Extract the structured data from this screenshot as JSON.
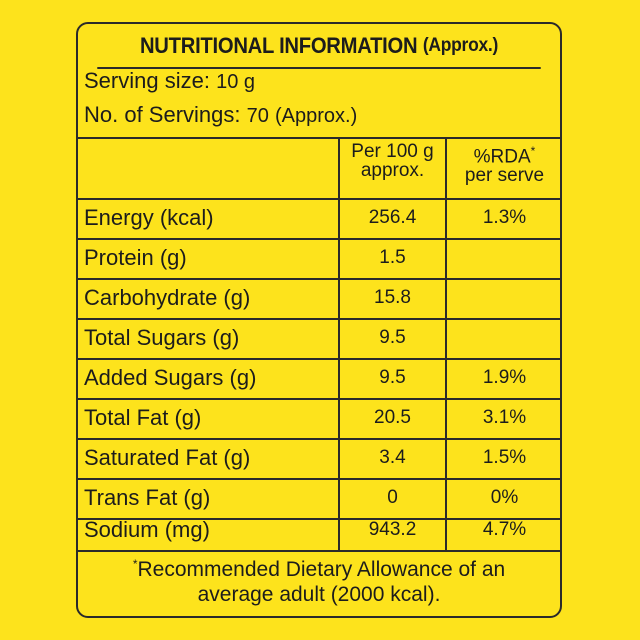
{
  "title": {
    "main": "NUTRITIONAL INFORMATION",
    "suffix": "(Approx.)"
  },
  "serving": {
    "size_label": "Serving size:",
    "size_value": "10 g",
    "count_label": "No. of Servings:",
    "count_value": "70",
    "count_suffix": "(Approx.)"
  },
  "columns": {
    "col1_line1": "Per 100 g",
    "col1_line2": "approx.",
    "col2_line1": "%RDA",
    "col2_mark": "*",
    "col2_line2": "per serve"
  },
  "rows": [
    {
      "name": "Energy (kcal)",
      "per100": "256.4",
      "rda": "1.3%"
    },
    {
      "name": "Protein (g)",
      "per100": "1.5",
      "rda": ""
    },
    {
      "name": "Carbohydrate (g)",
      "per100": "15.8",
      "rda": ""
    },
    {
      "name": "Total Sugars (g)",
      "per100": "9.5",
      "rda": ""
    },
    {
      "name": "Added Sugars (g)",
      "per100": "9.5",
      "rda": "1.9%"
    },
    {
      "name": "Total Fat (g)",
      "per100": "20.5",
      "rda": "3.1%"
    },
    {
      "name": "Saturated Fat (g)",
      "per100": "3.4",
      "rda": "1.5%"
    },
    {
      "name": "Trans Fat (g)",
      "per100": "0",
      "rda": "0%"
    },
    {
      "name": "Sodium (mg)",
      "per100": "943.2",
      "rda": "4.7%"
    }
  ],
  "footnote": {
    "mark": "*",
    "line1": "Recommended Dietary Allowance of an",
    "line2": "average adult (2000 kcal)."
  },
  "colors": {
    "background": "#fde31c",
    "ink": "#1c1c1c"
  }
}
